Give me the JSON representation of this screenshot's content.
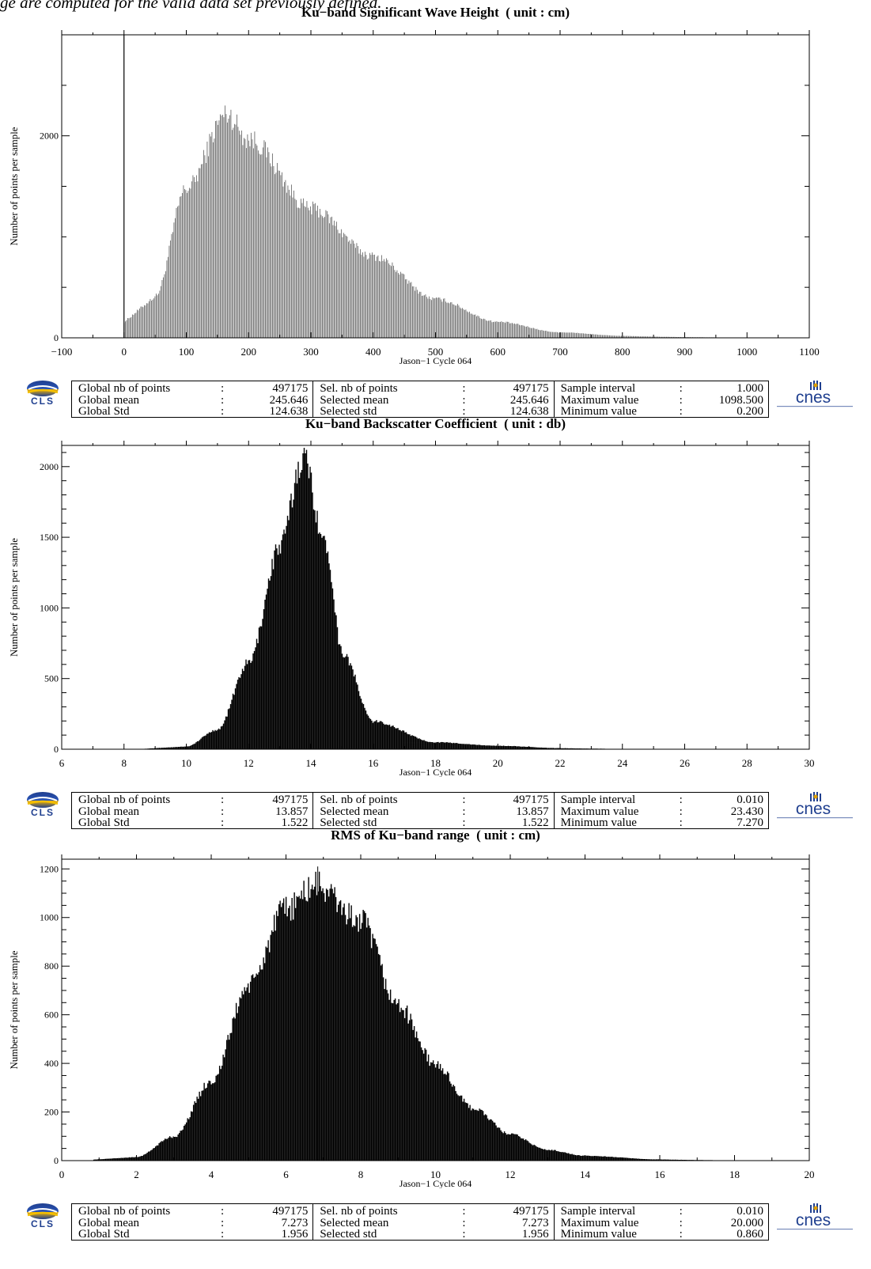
{
  "page": {
    "intro_fragment": "ge are computed for the valid data set previously defined."
  },
  "logos": {
    "left_text": "CLS",
    "right_text": "cnes"
  },
  "chart_data": [
    {
      "type": "bar",
      "title": "Ku−band Significant Wave Height  ( unit : cm)",
      "xlabel": "Jason−1 Cycle 064",
      "ylabel": "Number of points per sample",
      "xlim": [
        -100,
        1100
      ],
      "ylim": [
        0,
        3000
      ],
      "x_ticks": [
        -100,
        0,
        100,
        200,
        300,
        400,
        500,
        600,
        700,
        800,
        900,
        1000,
        1100
      ],
      "x_tick_labels": [
        "−100",
        "0",
        "100",
        "200",
        "300",
        "400",
        "500",
        "600",
        "700",
        "800",
        "900",
        "1000",
        "1100"
      ],
      "y_ticks": [
        0,
        2000
      ],
      "y_tick_labels": [
        "0",
        "2000"
      ],
      "y_minor_step": 500,
      "zero_line": true,
      "bar_fill": "#6b6b6b",
      "distribution": {
        "shape": "lognormal",
        "x_min": 0.2,
        "x_max": 1098.5,
        "bin_width": 1.0,
        "peak_x": 165,
        "peak_y": 2250,
        "reference_points": [
          [
            50,
            420
          ],
          [
            100,
            1500
          ],
          [
            165,
            2250
          ],
          [
            200,
            2000
          ],
          [
            300,
            1300
          ],
          [
            400,
            820
          ],
          [
            500,
            390
          ],
          [
            600,
            160
          ],
          [
            700,
            55
          ],
          [
            800,
            20
          ]
        ]
      },
      "stats": {
        "global_nb_points": "497175",
        "global_mean": "245.646",
        "global_std": "124.638",
        "sel_nb_points": "497175",
        "selected_mean": "245.646",
        "selected_std": "124.638",
        "sample_interval": "1.000",
        "maximum_value": "1098.500",
        "minimum_value": "0.200"
      }
    },
    {
      "type": "bar",
      "title": "Ku−band Backscatter Coefficient  ( unit : db)",
      "xlabel": "Jason−1 Cycle 064",
      "ylabel": "Number of points per sample",
      "xlim": [
        6,
        30
      ],
      "ylim": [
        0,
        2150
      ],
      "x_ticks": [
        6,
        8,
        10,
        12,
        14,
        16,
        18,
        20,
        22,
        24,
        26,
        28,
        30
      ],
      "x_tick_labels": [
        "6",
        "8",
        "10",
        "12",
        "14",
        "16",
        "18",
        "20",
        "22",
        "24",
        "26",
        "28",
        "30"
      ],
      "y_ticks": [
        0,
        500,
        1000,
        1500,
        2000
      ],
      "y_tick_labels": [
        "0",
        "500",
        "1000",
        "1500",
        "2000"
      ],
      "y_minor_step": 100,
      "bar_fill": "#000000",
      "distribution": {
        "shape": "skewed",
        "x_min": 7.27,
        "x_max": 23.43,
        "bin_width": 0.01,
        "peak_x": 13.75,
        "peak_y": 2100,
        "reference_points": [
          [
            10,
            20
          ],
          [
            11,
            140
          ],
          [
            12,
            620
          ],
          [
            13,
            1450
          ],
          [
            13.75,
            2100
          ],
          [
            14.5,
            1450
          ],
          [
            15,
            700
          ],
          [
            16,
            200
          ],
          [
            18,
            50
          ],
          [
            20,
            25
          ],
          [
            22,
            8
          ]
        ]
      },
      "stats": {
        "global_nb_points": "497175",
        "global_mean": "13.857",
        "global_std": "1.522",
        "sel_nb_points": "497175",
        "selected_mean": "13.857",
        "selected_std": "1.522",
        "sample_interval": "0.010",
        "maximum_value": "23.430",
        "minimum_value": "7.270"
      }
    },
    {
      "type": "bar",
      "title": "RMS of Ku−band range  ( unit : cm)",
      "xlabel": "Jason−1 Cycle 064",
      "ylabel": "Number of points per sample",
      "xlim": [
        0,
        20
      ],
      "ylim": [
        0,
        1240
      ],
      "x_ticks": [
        0,
        2,
        4,
        6,
        8,
        10,
        12,
        14,
        16,
        18,
        20
      ],
      "x_tick_labels": [
        "0",
        "2",
        "4",
        "6",
        "8",
        "10",
        "12",
        "14",
        "16",
        "18",
        "20"
      ],
      "y_ticks": [
        0,
        200,
        400,
        600,
        800,
        1000,
        1200
      ],
      "y_tick_labels": [
        "0",
        "200",
        "400",
        "600",
        "800",
        "1000",
        "1200"
      ],
      "y_minor_step": 50,
      "bar_fill": "#000000",
      "distribution": {
        "shape": "skewed",
        "x_min": 0.86,
        "x_max": 20.0,
        "bin_width": 0.01,
        "peak_x": 6.8,
        "peak_y": 1150,
        "reference_points": [
          [
            2,
            15
          ],
          [
            3,
            100
          ],
          [
            4,
            330
          ],
          [
            5,
            730
          ],
          [
            6,
            1050
          ],
          [
            6.8,
            1150
          ],
          [
            8,
            1000
          ],
          [
            9,
            650
          ],
          [
            10,
            400
          ],
          [
            11,
            220
          ],
          [
            12,
            110
          ],
          [
            13,
            45
          ],
          [
            14,
            20
          ],
          [
            16,
            5
          ]
        ]
      },
      "stats": {
        "global_nb_points": "497175",
        "global_mean": "7.273",
        "global_std": "1.956",
        "sel_nb_points": "497175",
        "selected_mean": "7.273",
        "selected_std": "1.956",
        "sample_interval": "0.010",
        "maximum_value": "20.000",
        "minimum_value": "0.860"
      }
    }
  ],
  "stats_labels": {
    "global_nb_points": "Global nb of points",
    "global_mean": "Global mean",
    "global_std": "Global Std",
    "sel_nb_points": "Sel. nb of points",
    "selected_mean": "Selected mean",
    "selected_std": "Selected std",
    "sample_interval": "Sample interval",
    "maximum_value": "Maximum value",
    "minimum_value": "Minimum value",
    "colon": ":"
  }
}
